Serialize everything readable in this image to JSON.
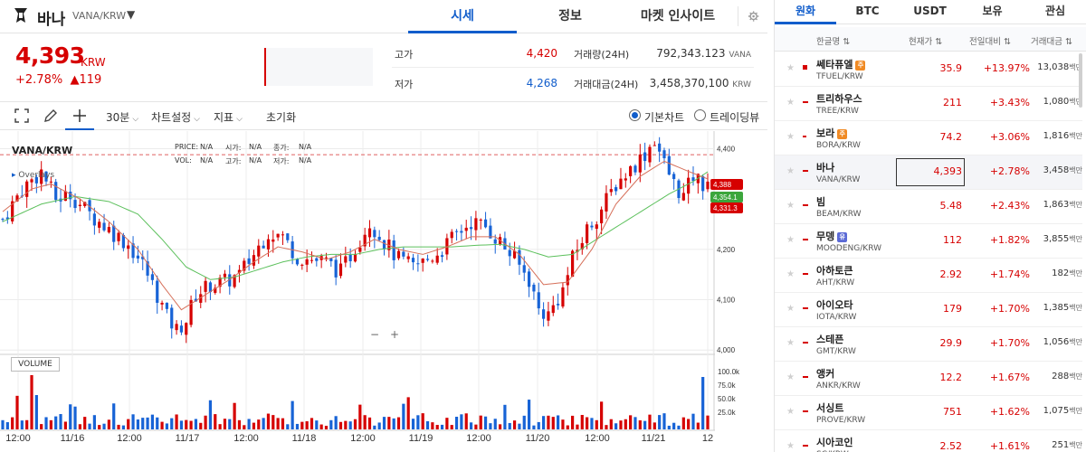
{
  "header": {
    "coin_name": "바나",
    "pair": "VANA/KRW",
    "tabs": [
      "시세",
      "정보",
      "마켓 인사이트"
    ],
    "active_tab": "시세"
  },
  "summary": {
    "price": "4,393",
    "unit": "KRW",
    "change_pct": "+2.78%",
    "change_amt": "▲119",
    "high_label": "고가",
    "high_value": "4,420",
    "low_label": "저가",
    "low_value": "4,268",
    "volume_label": "거래량(24H)",
    "volume_value": "792,343.123",
    "volume_unit": "VANA",
    "amount_label": "거래대금(24H)",
    "amount_value": "3,458,370,100",
    "amount_unit": "KRW"
  },
  "toolbar": {
    "interval": "30분",
    "chart_settings": "차트설정",
    "indicators": "지표",
    "reset": "초기화",
    "view_basic": "기본차트",
    "view_trading": "트레이딩뷰",
    "selected_view": "기본차트"
  },
  "chart": {
    "pair_label": "VANA/KRW",
    "info_rows": [
      [
        {
          "k": "PRICE:",
          "v": "N/A"
        },
        {
          "k": "시가:",
          "v": "N/A"
        },
        {
          "k": "종가:",
          "v": "N/A"
        }
      ],
      [
        {
          "k": "VOL:",
          "v": "N/A"
        },
        {
          "k": "고가:",
          "v": "N/A"
        },
        {
          "k": "저가:",
          "v": "N/A"
        }
      ]
    ],
    "overlays_label": "Overlays",
    "volume_label": "VOLUME",
    "zoom_out": "−",
    "zoom_in": "+",
    "colors": {
      "up": "#d60000",
      "down": "#1763d6",
      "ma_short": "#d6705a",
      "ma_long": "#5cc05c"
    }
  },
  "chart_data": {
    "type": "candlestick",
    "title": "VANA/KRW",
    "x_ticks": [
      "12:00",
      "11/16",
      "12:00",
      "11/17",
      "12:00",
      "11/18",
      "12:00",
      "11/19",
      "12:00",
      "11/20",
      "12:00",
      "11/21",
      "12"
    ],
    "y_ticks": [
      "4,400",
      "4,300",
      "4,200",
      "4,100",
      "4,000"
    ],
    "ylim": [
      3995,
      4435
    ],
    "volume_ticks": [
      "100.0k",
      "75.0k",
      "50.0k",
      "25.0k"
    ],
    "price_tags": [
      {
        "value": "4,388",
        "color": "#d60000"
      },
      {
        "value": "4,354.1",
        "color": "#3ca63c"
      },
      {
        "value": "4,331.3",
        "color": "#d60000"
      }
    ],
    "close_path": [
      [
        0,
        4260
      ],
      [
        4,
        4320
      ],
      [
        8,
        4355
      ],
      [
        11,
        4300
      ],
      [
        14,
        4310
      ],
      [
        18,
        4270
      ],
      [
        22,
        4240
      ],
      [
        26,
        4210
      ],
      [
        29,
        4170
      ],
      [
        32,
        4110
      ],
      [
        34,
        4065
      ],
      [
        36,
        4040
      ],
      [
        38,
        4060
      ],
      [
        40,
        4110
      ],
      [
        43,
        4130
      ],
      [
        46,
        4135
      ],
      [
        49,
        4150
      ],
      [
        52,
        4190
      ],
      [
        55,
        4235
      ],
      [
        58,
        4225
      ],
      [
        61,
        4185
      ],
      [
        64,
        4180
      ],
      [
        67,
        4175
      ],
      [
        70,
        4155
      ],
      [
        73,
        4205
      ],
      [
        76,
        4255
      ],
      [
        79,
        4215
      ],
      [
        82,
        4180
      ],
      [
        85,
        4165
      ],
      [
        88,
        4180
      ],
      [
        91,
        4200
      ],
      [
        94,
        4230
      ],
      [
        97,
        4255
      ],
      [
        100,
        4245
      ],
      [
        103,
        4215
      ],
      [
        106,
        4180
      ],
      [
        109,
        4140
      ],
      [
        111,
        4080
      ],
      [
        113,
        4070
      ],
      [
        116,
        4120
      ],
      [
        118,
        4180
      ],
      [
        121,
        4240
      ],
      [
        124,
        4280
      ],
      [
        127,
        4330
      ],
      [
        130,
        4360
      ],
      [
        133,
        4390
      ],
      [
        135,
        4420
      ],
      [
        137,
        4370
      ],
      [
        139,
        4330
      ],
      [
        141,
        4305
      ],
      [
        143,
        4345
      ],
      [
        145,
        4330
      ],
      [
        146,
        4340
      ]
    ],
    "ma_short": [
      [
        0,
        4275
      ],
      [
        6,
        4320
      ],
      [
        10,
        4330
      ],
      [
        16,
        4300
      ],
      [
        22,
        4255
      ],
      [
        28,
        4200
      ],
      [
        33,
        4130
      ],
      [
        37,
        4080
      ],
      [
        42,
        4110
      ],
      [
        47,
        4140
      ],
      [
        52,
        4175
      ],
      [
        57,
        4205
      ],
      [
        62,
        4195
      ],
      [
        67,
        4180
      ],
      [
        72,
        4195
      ],
      [
        77,
        4220
      ],
      [
        82,
        4200
      ],
      [
        87,
        4190
      ],
      [
        92,
        4205
      ],
      [
        97,
        4225
      ],
      [
        102,
        4225
      ],
      [
        107,
        4190
      ],
      [
        112,
        4130
      ],
      [
        117,
        4135
      ],
      [
        122,
        4200
      ],
      [
        127,
        4290
      ],
      [
        132,
        4345
      ],
      [
        137,
        4375
      ],
      [
        142,
        4355
      ],
      [
        146,
        4340
      ]
    ],
    "ma_long": [
      [
        0,
        4255
      ],
      [
        8,
        4290
      ],
      [
        15,
        4305
      ],
      [
        22,
        4295
      ],
      [
        28,
        4270
      ],
      [
        33,
        4220
      ],
      [
        38,
        4165
      ],
      [
        43,
        4140
      ],
      [
        48,
        4145
      ],
      [
        53,
        4160
      ],
      [
        58,
        4175
      ],
      [
        63,
        4185
      ],
      [
        68,
        4190
      ],
      [
        73,
        4190
      ],
      [
        78,
        4200
      ],
      [
        83,
        4205
      ],
      [
        88,
        4205
      ],
      [
        93,
        4205
      ],
      [
        98,
        4208
      ],
      [
        103,
        4210
      ],
      [
        108,
        4200
      ],
      [
        113,
        4185
      ],
      [
        118,
        4190
      ],
      [
        123,
        4220
      ],
      [
        128,
        4250
      ],
      [
        133,
        4280
      ],
      [
        138,
        4310
      ],
      [
        143,
        4335
      ],
      [
        146,
        4354
      ]
    ]
  },
  "sidebar": {
    "tabs": [
      "원화",
      "BTC",
      "USDT",
      "보유",
      "관심"
    ],
    "active_tab": "원화",
    "columns": [
      "한글명 ⇅",
      "현재가 ⇅",
      "전일대비 ⇅",
      "거래대금 ⇅"
    ],
    "volume_unit": "백만",
    "rows": [
      {
        "name": "쎄타퓨엘",
        "pair": "TFUEL/KRW",
        "price": "35.9",
        "pct": "+13.97%",
        "vol": "13,038",
        "badge": "주",
        "badge_color": "#f08a24",
        "marker": "sq"
      },
      {
        "name": "트리하우스",
        "pair": "TREE/KRW",
        "price": "211",
        "pct": "+3.43%",
        "vol": "1,080",
        "badge": "",
        "badge_color": "",
        "marker": "line"
      },
      {
        "name": "보라",
        "pair": "BORA/KRW",
        "price": "74.2",
        "pct": "+3.06%",
        "vol": "1,816",
        "badge": "주",
        "badge_color": "#f08a24",
        "marker": "dash"
      },
      {
        "name": "바나",
        "pair": "VANA/KRW",
        "price": "4,393",
        "pct": "+2.78%",
        "vol": "3,458",
        "badge": "",
        "badge_color": "",
        "marker": "line",
        "selected": true
      },
      {
        "name": "빔",
        "pair": "BEAM/KRW",
        "price": "5.48",
        "pct": "+2.43%",
        "vol": "1,863",
        "badge": "",
        "badge_color": "",
        "marker": "line"
      },
      {
        "name": "무뎅",
        "pair": "MOODENG/KRW",
        "price": "112",
        "pct": "+1.82%",
        "vol": "3,855",
        "badge": "유",
        "badge_color": "#5b6ad6",
        "marker": "line"
      },
      {
        "name": "아하토큰",
        "pair": "AHT/KRW",
        "price": "2.92",
        "pct": "+1.74%",
        "vol": "182",
        "badge": "",
        "badge_color": "",
        "marker": "line"
      },
      {
        "name": "아이오타",
        "pair": "IOTA/KRW",
        "price": "179",
        "pct": "+1.70%",
        "vol": "1,385",
        "badge": "",
        "badge_color": "",
        "marker": "line"
      },
      {
        "name": "스테픈",
        "pair": "GMT/KRW",
        "price": "29.9",
        "pct": "+1.70%",
        "vol": "1,056",
        "badge": "",
        "badge_color": "",
        "marker": "line"
      },
      {
        "name": "앵커",
        "pair": "ANKR/KRW",
        "price": "12.2",
        "pct": "+1.67%",
        "vol": "288",
        "badge": "",
        "badge_color": "",
        "marker": "line"
      },
      {
        "name": "서싱트",
        "pair": "PROVE/KRW",
        "price": "751",
        "pct": "+1.62%",
        "vol": "1,075",
        "badge": "",
        "badge_color": "",
        "marker": "line"
      },
      {
        "name": "시아코인",
        "pair": "SC/KRW",
        "price": "2.52",
        "pct": "+1.61%",
        "vol": "251",
        "badge": "",
        "badge_color": "",
        "marker": "line"
      }
    ]
  }
}
